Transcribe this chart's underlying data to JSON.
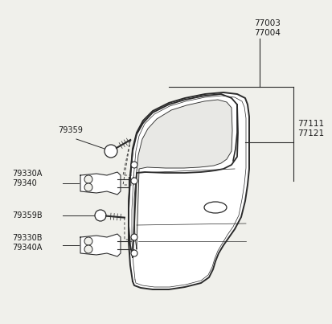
{
  "bg_color": "#f0f0eb",
  "line_color": "#2a2a2a",
  "label_color": "#1a1a1a",
  "label_fs": 7.5,
  "label_fs_sm": 7.0,
  "parts_labels": {
    "77003_77004": "77003\n77004",
    "77111_77121": "77111\n77121",
    "79359": "79359",
    "79330A_79340": "79330A\n79340",
    "79359B": "79359B",
    "79330B_79340A": "79330B\n79340A"
  }
}
